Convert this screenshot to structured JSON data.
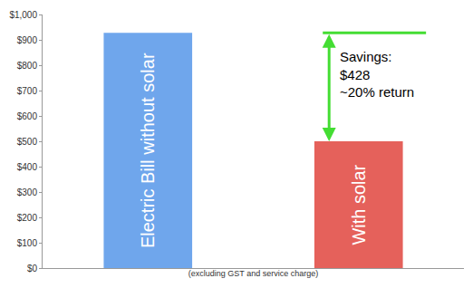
{
  "chart_data": {
    "type": "bar",
    "categories": [
      "Electric Bill without solar",
      "With solar"
    ],
    "values": [
      928,
      500
    ],
    "colors": [
      "#6fa6ec",
      "#e5615b"
    ],
    "ylim": [
      0,
      1000
    ],
    "yticks": [
      {
        "value": 0,
        "label": "$0"
      },
      {
        "value": 100,
        "label": "$100"
      },
      {
        "value": 200,
        "label": "$200"
      },
      {
        "value": 300,
        "label": "$300"
      },
      {
        "value": 400,
        "label": "$400"
      },
      {
        "value": 500,
        "label": "$500"
      },
      {
        "value": 600,
        "label": "$600"
      },
      {
        "value": 700,
        "label": "$700"
      },
      {
        "value": 800,
        "label": "$800"
      },
      {
        "value": 900,
        "label": "$900"
      },
      {
        "value": 1000,
        "label": "$1,000"
      }
    ],
    "xlabel": "(excluding GST and service charge)",
    "annotation": [
      "Savings:",
      "$428",
      "~20% return"
    ],
    "grid": false,
    "tick_labels": "y"
  }
}
